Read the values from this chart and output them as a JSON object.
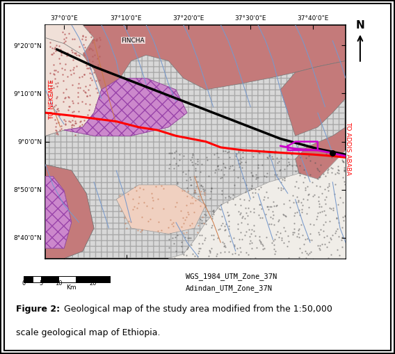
{
  "xlim": [
    36.95,
    37.755
  ],
  "ylim": [
    8.595,
    9.405
  ],
  "xticks": [
    37.0,
    37.1667,
    37.3333,
    37.5,
    37.6667
  ],
  "xtick_labels": [
    "37°0'0\"E",
    "37°10'0\"E",
    "37°20'0\"E",
    "37°30'0\"E",
    "37°40'0\"E"
  ],
  "yticks": [
    8.6667,
    8.8333,
    9.0,
    9.1667,
    9.3333
  ],
  "ytick_labels": [
    "8°40'0\"N",
    "8°50'0\"N",
    "9°0'0\"N",
    "9°10'0\"N",
    "9°20'0\"N"
  ],
  "fincha_label": "FINCHA",
  "to_nekemte": "TO NEKEMTE",
  "to_addis": "TO ADDIS ABABA",
  "wgs_label": "WGS_1984_UTM_Zone_37N",
  "adindan_label": "Adindan_UTM_Zone_37N",
  "fig_bold": "Figure 2:",
  "fig_normal": " Geological map of the study area modified from the 1:50,000\nscale geological map of Ethiopia.",
  "color_pink": "#c47a7a",
  "color_light_dotted": "#f0e0d8",
  "color_purple": "#cc88cc",
  "color_gray_hatch": "#d8d8d8",
  "color_stipple": "#f0ede8",
  "color_river_blue": "#7799cc",
  "color_river_red": "#cc7744"
}
